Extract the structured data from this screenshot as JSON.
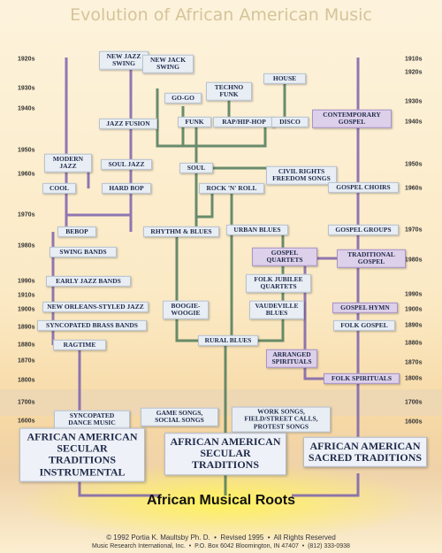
{
  "title": "Evolution of African American Music",
  "decades_left": [
    "1920s",
    "1930s",
    "1940s",
    "1950s",
    "1960s",
    "1970s",
    "1980s",
    "1990s",
    "1910s",
    "1900s",
    "1890s",
    "1880s",
    "1870s",
    "1800s",
    "1700s",
    "1600s"
  ],
  "decades_right": [
    "1910s",
    "1920s",
    "1930s",
    "1940s",
    "1950s",
    "1960s",
    "1970s",
    "1980s",
    "1990s",
    "1900s",
    "1890s",
    "1880s",
    "1870s",
    "1800s",
    "1700s",
    "1600s"
  ],
  "nodes": [
    {
      "label": "NEW JAZZ SWING"
    },
    {
      "label": "NEW JACK SWING"
    },
    {
      "label": "TECHNO FUNK"
    },
    {
      "label": "HOUSE"
    },
    {
      "label": "GO-GO"
    },
    {
      "label": "JAZZ FUSION"
    },
    {
      "label": "FUNK"
    },
    {
      "label": "RAP/HIP-HOP"
    },
    {
      "label": "DISCO"
    },
    {
      "label": "CONTEMPORARY GOSPEL"
    },
    {
      "label": "MODERN JAZZ"
    },
    {
      "label": "SOUL JAZZ"
    },
    {
      "label": "SOUL"
    },
    {
      "label": "CIVIL RIGHTS FREEDOM SONGS"
    },
    {
      "label": "COOL"
    },
    {
      "label": "HARD BOP"
    },
    {
      "label": "ROCK 'N' ROLL"
    },
    {
      "label": "GOSPEL CHOIRS"
    },
    {
      "label": "BEBOP"
    },
    {
      "label": "RHYTHM & BLUES"
    },
    {
      "label": "URBAN BLUES"
    },
    {
      "label": "GOSPEL GROUPS"
    },
    {
      "label": "SWING BANDS"
    },
    {
      "label": "GOSPEL QUARTETS"
    },
    {
      "label": "TRADITIONAL GOSPEL"
    },
    {
      "label": "EARLY JAZZ BANDS"
    },
    {
      "label": "FOLK JUBILEE QUARTETS"
    },
    {
      "label": "NEW ORLEANS-STYLED JAZZ"
    },
    {
      "label": "BOOGIE-WOOGIE"
    },
    {
      "label": "VAUDEVILLE BLUES"
    },
    {
      "label": "GOSPEL HYMN"
    },
    {
      "label": "SYNCOPATED BRASS BANDS"
    },
    {
      "label": "FOLK GOSPEL"
    },
    {
      "label": "RURAL BLUES"
    },
    {
      "label": "RAGTIME"
    },
    {
      "label": "ARRANGED SPIRITUALS"
    },
    {
      "label": "FOLK SPIRITUALS"
    },
    {
      "label": "SYNCOPATED DANCE MUSIC"
    },
    {
      "label": "GAME SONGS, SOCIAL SONGS"
    },
    {
      "label": "WORK SONGS, FIELD/STREET CALLS, PROTEST SONGS"
    }
  ],
  "traditions": [
    {
      "label": "AFRICAN AMERICAN SECULAR TRADITIONS INSTRUMENTAL"
    },
    {
      "label": "AFRICAN AMERICAN SECULAR TRADITIONS"
    },
    {
      "label": "AFRICAN AMERICAN SACRED TRADITIONS"
    }
  ],
  "roots": "African Musical Roots",
  "footer": [
    "© 1992 Portia K. Maultsby Ph. D.  •  Revised 1995  •  All Rights Reserved",
    "Music Research International, Inc.  •  P.O. Box 6042 Bloomington, IN 47407  •  (812) 333-0938"
  ]
}
